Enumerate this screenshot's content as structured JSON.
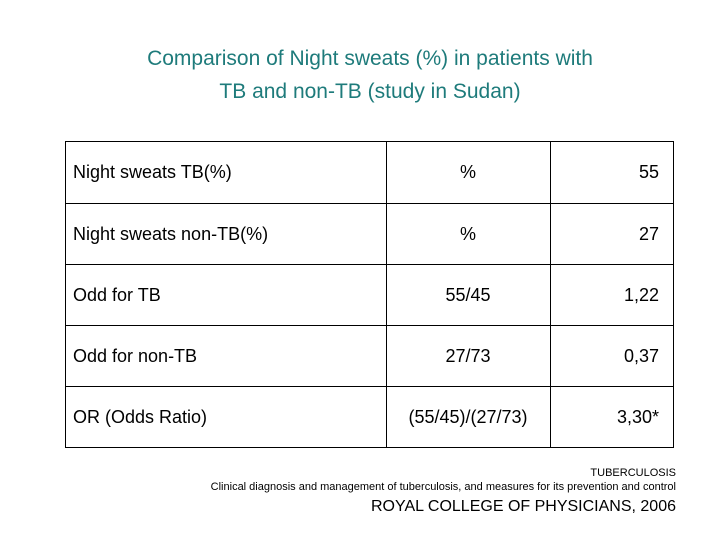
{
  "title": {
    "line1": "Comparison of Night sweats (%) in patients with",
    "line2": "TB and non-TB (study in Sudan)",
    "color": "#1e7b7b"
  },
  "table": {
    "rows": [
      {
        "label": "Night sweats TB(%)",
        "calc": "%",
        "value": "55"
      },
      {
        "label": "Night sweats non-TB(%)",
        "calc": "%",
        "value": "27"
      },
      {
        "label": "Odd for TB",
        "calc": "55/45",
        "value": "1,22"
      },
      {
        "label": "Odd for non-TB",
        "calc": "27/73",
        "value": "0,37"
      },
      {
        "label": "OR (Odds Ratio)",
        "calc": "(55/45)/(27/73)",
        "value": "3,30*"
      }
    ]
  },
  "source": {
    "line1": "TUBERCULOSIS",
    "line2": "Clinical diagnosis and management of tuberculosis, and measures for its prevention and control",
    "line3": "ROYAL COLLEGE OF PHYSICIANS, 2006"
  }
}
